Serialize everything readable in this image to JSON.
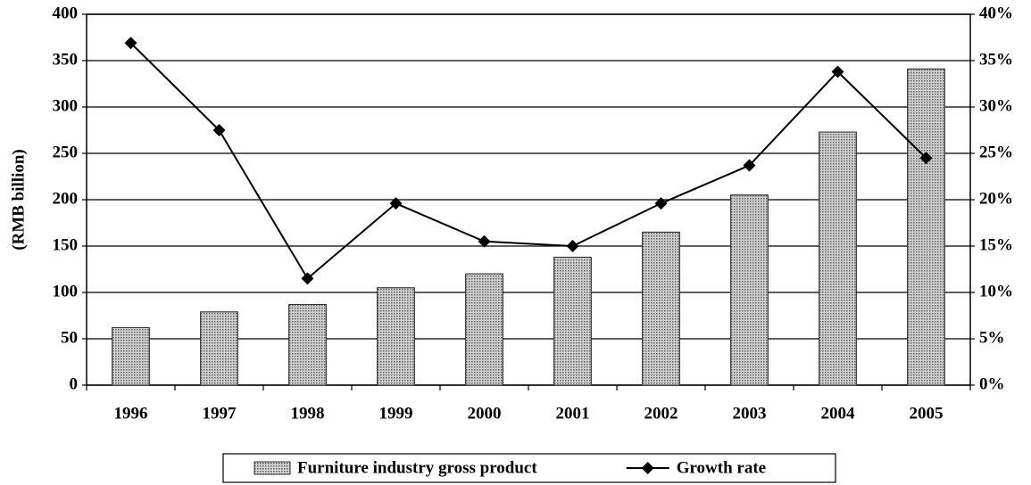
{
  "chart_data": {
    "type": "bar-line",
    "y_label": "(RMB billion)",
    "categories": [
      "1996",
      "1997",
      "1998",
      "1999",
      "2000",
      "2001",
      "2002",
      "2003",
      "2004",
      "2005"
    ],
    "series": [
      {
        "name": "Furniture industry gross product",
        "type": "bar",
        "color": "#a8a8a8",
        "values": [
          62,
          79,
          87,
          105,
          120,
          138,
          165,
          205,
          273,
          341
        ]
      },
      {
        "name": "Growth rate",
        "type": "line",
        "axis": "y2",
        "color": "#000000",
        "values": [
          36.9,
          27.5,
          11.5,
          19.6,
          15.5,
          15,
          19.6,
          23.7,
          33.8,
          24.5
        ]
      }
    ],
    "ylim": [
      0,
      400
    ],
    "yticks": [
      0,
      50,
      100,
      150,
      200,
      250,
      300,
      350,
      400
    ],
    "y2lim": [
      0,
      40
    ],
    "y2ticks": [
      {
        "value": 0,
        "label": "0%"
      },
      {
        "value": 5,
        "label": "5%"
      },
      {
        "value": 10,
        "label": "10%"
      },
      {
        "value": 15,
        "label": "15%"
      },
      {
        "value": 20,
        "label": "20%"
      },
      {
        "value": 25,
        "label": "25%"
      },
      {
        "value": 30,
        "label": "30%"
      },
      {
        "value": 35,
        "label": "35%"
      },
      {
        "value": 40,
        "label": "40%"
      }
    ],
    "grid": true,
    "legend": "bottom"
  }
}
